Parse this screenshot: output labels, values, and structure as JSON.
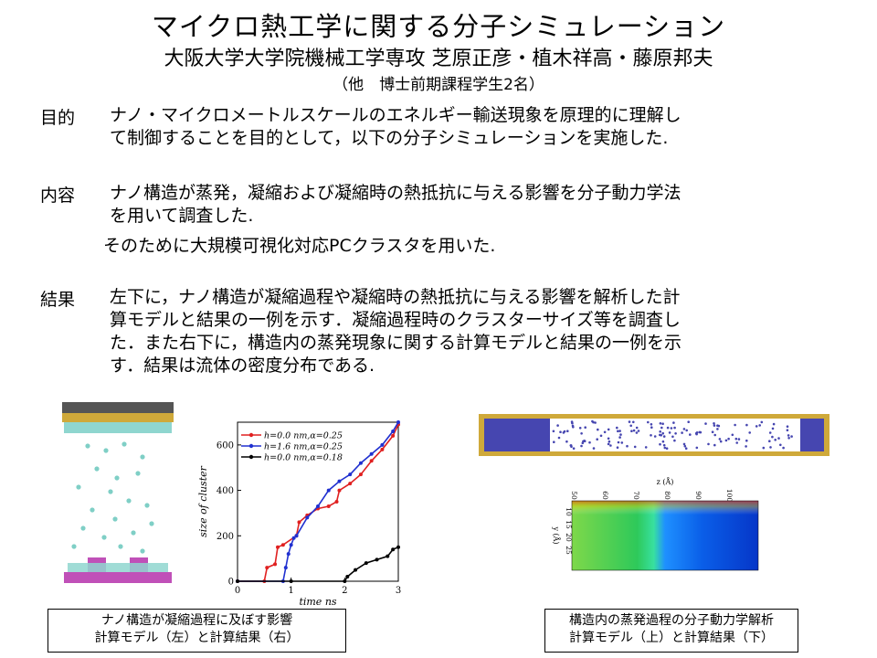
{
  "header": {
    "title": "マイクロ熱工学に関する分子シミュレーション",
    "authors": "大阪大学大学院機械工学専攻 芝原正彦・植木祥高・藤原邦夫",
    "note": "（他　博士前期課程学生2名）"
  },
  "sections": [
    {
      "label": "目的",
      "lines": [
        "ナノ・マイクロメートルスケールのエネルギー輸送現象を原理的に理解し",
        "て制御することを目的として，以下の分子シミュレーションを実施した."
      ]
    },
    {
      "label": "内容",
      "lines": [
        "ナノ構造が蒸発，凝縮および凝縮時の熱抵抗に与える影響を分子動力学法",
        "を用いて調査した."
      ],
      "extra": "そのために大規模可視化対応PCクラスタを用いた."
    },
    {
      "label": "結果",
      "lines": [
        "左下に，ナノ構造が凝縮過程や凝縮時の熱抵抗に与える影響を解析した計",
        "算モデルと結果の一例を示す．凝縮過程時のクラスターサイズ等を調査し",
        "た．また右下に，構造内の蒸発現象に関する計算モデルと結果の一例を示",
        "す．結果は流体の密度分布である."
      ]
    }
  ],
  "captions": {
    "left": [
      "ナノ構造が凝縮過程に及ぼす影響",
      "計算モデル（左）と計算結果（右）"
    ],
    "right": [
      "構造内の蒸発過程の分子動力学解析",
      "計算モデル（上）と計算結果（下）"
    ]
  },
  "chart_data": {
    "type": "line",
    "title": "",
    "xlabel": "time ns",
    "ylabel": "size of cluster",
    "xlim": [
      0,
      3
    ],
    "ylim": [
      0,
      700
    ],
    "xticks": [
      0,
      1,
      2,
      3
    ],
    "yticks": [
      0,
      200,
      400,
      600
    ],
    "legend_position": "top-left",
    "series": [
      {
        "name": "h=0.0 nm,α=0.25",
        "color": "#e02020",
        "x": [
          0,
          0.5,
          0.55,
          0.7,
          0.75,
          0.85,
          1.1,
          1.15,
          1.3,
          1.5,
          1.7,
          1.85,
          1.9,
          2.1,
          2.3,
          2.5,
          2.7,
          2.9,
          3.0
        ],
        "y": [
          0,
          0,
          60,
          75,
          150,
          160,
          200,
          260,
          290,
          320,
          330,
          350,
          400,
          430,
          470,
          530,
          580,
          640,
          690
        ]
      },
      {
        "name": "h=1.6 nm,α=0.25",
        "color": "#2030d0",
        "x": [
          0,
          0.85,
          0.9,
          0.95,
          1.0,
          1.05,
          1.1,
          1.3,
          1.5,
          1.7,
          1.9,
          2.1,
          2.3,
          2.5,
          2.7,
          2.9,
          3.0
        ],
        "y": [
          0,
          0,
          60,
          120,
          160,
          190,
          200,
          280,
          330,
          400,
          440,
          470,
          520,
          560,
          600,
          660,
          700
        ]
      },
      {
        "name": "h=0.0 nm,α=0.18",
        "color": "#000000",
        "x": [
          0,
          1.0,
          2.0,
          2.05,
          2.2,
          2.4,
          2.6,
          2.8,
          2.9,
          3.0
        ],
        "y": [
          0,
          0,
          0,
          20,
          50,
          80,
          95,
          110,
          140,
          150
        ]
      }
    ]
  },
  "heatmap": {
    "xlabel": "z (Å)",
    "ylabel": "y (Å)",
    "xticks": [
      50,
      60,
      70,
      80,
      90,
      100
    ],
    "yticks": [
      10,
      15,
      20,
      25
    ]
  }
}
